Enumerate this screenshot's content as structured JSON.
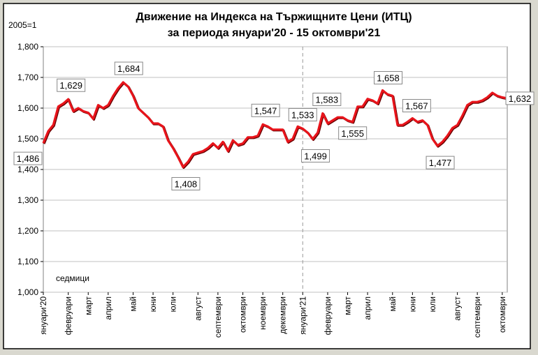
{
  "chart_data": {
    "type": "line",
    "title": "Движение на Индекса на Тържищните Цени (ИТЦ)",
    "subtitle": "за периода януари'20 - 15 октомври'21",
    "y_unit_label": "2005=1",
    "x_axis_label": "седмици",
    "categories": [
      "януари'20",
      null,
      null,
      null,
      null,
      "февруари",
      null,
      null,
      null,
      "март",
      null,
      null,
      null,
      "април",
      null,
      null,
      null,
      null,
      "май",
      null,
      null,
      null,
      "юни",
      null,
      null,
      null,
      "юли",
      null,
      null,
      null,
      null,
      "август",
      null,
      null,
      null,
      "септември",
      null,
      null,
      null,
      null,
      "октомври",
      null,
      null,
      null,
      "ноември",
      null,
      null,
      null,
      "декември",
      null,
      null,
      null,
      "януари'21",
      null,
      null,
      null,
      null,
      "февруари",
      null,
      null,
      null,
      "март",
      null,
      null,
      null,
      "април",
      null,
      null,
      null,
      null,
      "май",
      null,
      null,
      null,
      "юни",
      null,
      null,
      null,
      "юли",
      null,
      null,
      null,
      null,
      "август",
      null,
      null,
      null,
      "септември",
      null,
      null,
      null,
      null,
      "октомври",
      null
    ],
    "series": [
      {
        "name": "ИТЦ",
        "color": "#e8141b",
        "values": [
          1486,
          1525,
          1545,
          1605,
          1615,
          1629,
          1590,
          1600,
          1590,
          1585,
          1565,
          1610,
          1600,
          1610,
          1640,
          1665,
          1684,
          1670,
          1640,
          1600,
          1585,
          1570,
          1550,
          1550,
          1540,
          1495,
          1470,
          1440,
          1408,
          1425,
          1450,
          1455,
          1460,
          1470,
          1485,
          1470,
          1490,
          1460,
          1495,
          1480,
          1485,
          1505,
          1505,
          1510,
          1547,
          1540,
          1530,
          1530,
          1530,
          1490,
          1500,
          1540,
          1533,
          1520,
          1499,
          1520,
          1583,
          1550,
          1560,
          1570,
          1570,
          1560,
          1555,
          1605,
          1605,
          1630,
          1625,
          1615,
          1658,
          1645,
          1640,
          1545,
          1545,
          1555,
          1567,
          1555,
          1560,
          1545,
          1500,
          1477,
          1490,
          1510,
          1535,
          1545,
          1575,
          1610,
          1620,
          1620,
          1625,
          1635,
          1650,
          1640,
          1635,
          1632
        ],
        "value_labels": [
          "1,486",
          null,
          null,
          null,
          null,
          "1,629",
          null,
          null,
          null,
          null,
          null,
          null,
          null,
          null,
          null,
          null,
          "1,684",
          null,
          null,
          null,
          null,
          null,
          null,
          null,
          null,
          null,
          null,
          null,
          "1,408",
          null,
          null,
          null,
          null,
          null,
          null,
          null,
          null,
          null,
          null,
          null,
          null,
          null,
          null,
          null,
          "1,547",
          null,
          null,
          null,
          null,
          null,
          null,
          null,
          "1,533",
          null,
          "1,499",
          null,
          "1,583",
          null,
          null,
          null,
          null,
          null,
          "1,555",
          null,
          null,
          null,
          null,
          null,
          "1,658",
          null,
          null,
          null,
          null,
          null,
          "1,567",
          null,
          null,
          null,
          null,
          "1,477",
          null,
          null,
          null,
          null,
          null,
          null,
          null,
          null,
          null,
          null,
          null,
          null,
          null,
          "1,632"
        ]
      }
    ],
    "ylim": [
      1000,
      1800
    ],
    "yticks": [
      {
        "value": 1000,
        "label": "1,000"
      },
      {
        "value": 1100,
        "label": "1,100"
      },
      {
        "value": 1200,
        "label": "1,200"
      },
      {
        "value": 1300,
        "label": "1,300"
      },
      {
        "value": 1400,
        "label": "1,400"
      },
      {
        "value": 1500,
        "label": "1,500"
      },
      {
        "value": 1600,
        "label": "1,600"
      },
      {
        "value": 1700,
        "label": "1,700"
      },
      {
        "value": 1800,
        "label": "1,800"
      }
    ],
    "grid": true
  }
}
